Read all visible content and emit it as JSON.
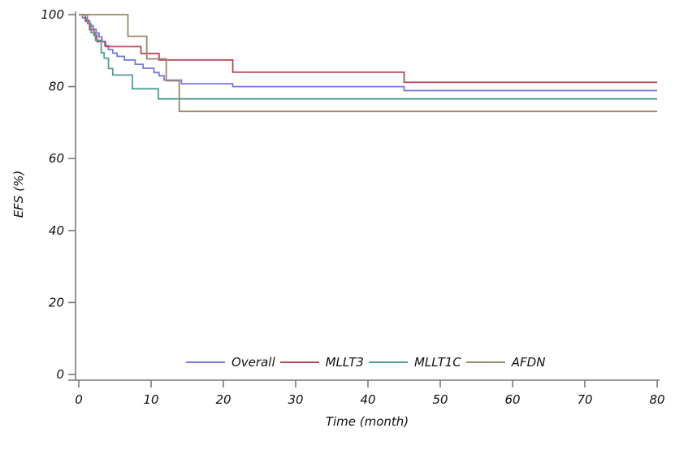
{
  "figure": {
    "background": "#ffffff",
    "axis_color": "#7a7a7a",
    "text_color": "#111111"
  },
  "axes": {
    "x": {
      "title": "Time (month)",
      "ticks": [
        0,
        10,
        20,
        30,
        40,
        50,
        60,
        70,
        80
      ],
      "range": [
        0,
        80
      ]
    },
    "y": {
      "title": "EFS (%)",
      "ticks": [
        0,
        20,
        40,
        60,
        80,
        100
      ],
      "range": [
        0,
        100
      ]
    }
  },
  "legend": {
    "position": "bottom-center",
    "items": [
      {
        "label": "Overall",
        "color": "#7678de"
      },
      {
        "label": "MLLT3",
        "color": "#bc4a57"
      },
      {
        "label": "MLLT1C",
        "color": "#4f9d96"
      },
      {
        "label": "AFDN",
        "color": "#9b8765"
      }
    ]
  },
  "chart_data": {
    "type": "line",
    "subtype": "kaplan-meier-step",
    "title": "",
    "xlabel": "Time (month)",
    "ylabel": "EFS (%)",
    "xlim": [
      0,
      80
    ],
    "ylim": [
      0,
      100
    ],
    "grid": false,
    "legend_position": "bottom-center",
    "series": [
      {
        "name": "Overall",
        "color": "#7678de",
        "x": [
          0,
          0.5,
          1.0,
          1.5,
          2.0,
          2.4,
          2.8,
          3.2,
          3.6,
          4.1,
          4.7,
          5.3,
          6.3,
          7.8,
          8.9,
          10.4,
          11.1,
          11.8,
          14.2,
          21.3,
          45.0,
          80
        ],
        "y": [
          100,
          99.1,
          98.1,
          96.9,
          95.9,
          94.9,
          93.8,
          92.5,
          91.4,
          90.3,
          89.3,
          88.4,
          87.4,
          86.2,
          85.1,
          83.9,
          83.0,
          81.8,
          80.8,
          80.0,
          78.9,
          78.9
        ]
      },
      {
        "name": "MLLT3",
        "color": "#bc4a57",
        "x": [
          0,
          0.9,
          1.5,
          2.1,
          2.5,
          3.7,
          8.6,
          11.1,
          21.3,
          45.0,
          80
        ],
        "y": [
          100,
          98.3,
          95.8,
          94.3,
          92.5,
          91.1,
          89.2,
          87.4,
          84.0,
          81.2,
          81.2
        ]
      },
      {
        "name": "MLLT1C",
        "color": "#4f9d96",
        "x": [
          0,
          1.2,
          1.7,
          2.3,
          3.1,
          3.5,
          4.1,
          4.7,
          7.4,
          11.0,
          80
        ],
        "y": [
          100,
          97.5,
          95.0,
          92.9,
          89.4,
          87.9,
          85.0,
          83.2,
          79.4,
          76.6,
          76.6
        ]
      },
      {
        "name": "AFDN",
        "color": "#9b8765",
        "x": [
          0,
          6.8,
          9.4,
          12.1,
          13.9,
          80
        ],
        "y": [
          100,
          94.0,
          87.7,
          81.6,
          73.1,
          73.1
        ]
      }
    ]
  }
}
